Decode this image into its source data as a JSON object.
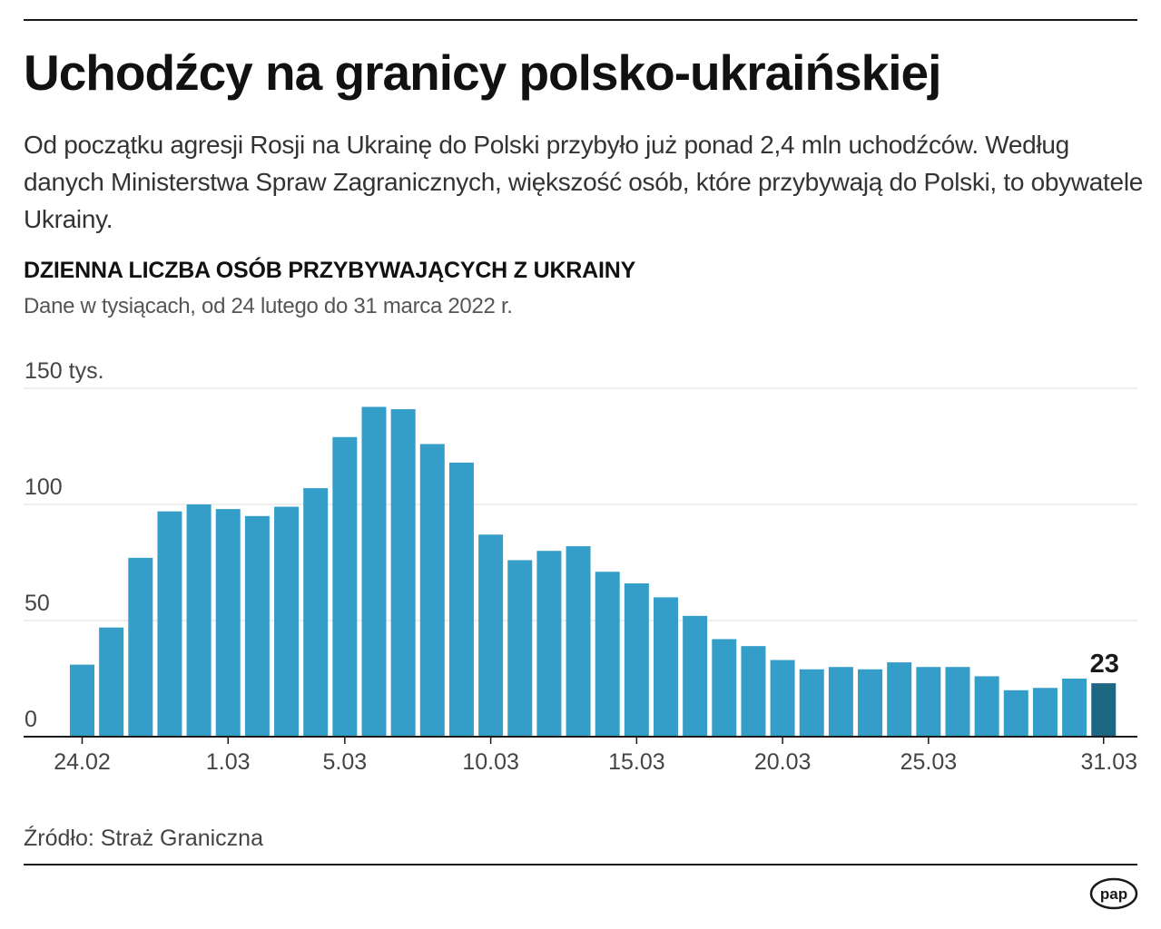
{
  "header": {
    "title": "Uchodźcy na granicy polsko-ukraińskiej",
    "lede": "Od początku agresji Rosji na Ukrainę do Polski przybyło już ponad 2,4 mln uchodźców. Według danych Ministerstwa Spraw Zagranicznych, większość osób, które przybywają do Polski, to obywatele Ukrainy."
  },
  "chart_data": {
    "type": "bar",
    "title": "DZIENNA LICZBA OSÓB PRZYBYWAJĄCYCH Z UKRAINY",
    "subtitle": "Dane w tysiącach, od 24 lutego do 31 marca 2022 r.",
    "x_ticks": [
      "24.02",
      "1.03",
      "5.03",
      "10.03",
      "15.03",
      "20.03",
      "25.03",
      "31.03"
    ],
    "x_tick_index": [
      0,
      5,
      9,
      14,
      19,
      24,
      29,
      35
    ],
    "y_ticks": [
      "0",
      "50",
      "100",
      "150 tys."
    ],
    "y_tick_values": [
      0,
      50,
      100,
      150
    ],
    "ylim": [
      0,
      150
    ],
    "grid": true,
    "values": [
      31,
      47,
      77,
      97,
      100,
      98,
      95,
      99,
      107,
      129,
      142,
      141,
      126,
      118,
      87,
      76,
      80,
      82,
      71,
      66,
      60,
      52,
      42,
      39,
      33,
      29,
      30,
      29,
      32,
      30,
      30,
      26,
      20,
      21,
      25,
      23
    ],
    "bar_color": "#359ec8",
    "highlight_index": 35,
    "highlight_color": "#1e6782",
    "highlight_label": "23"
  },
  "footer": {
    "source": "Źródło: Straż Graniczna",
    "logo_text": "pap"
  }
}
